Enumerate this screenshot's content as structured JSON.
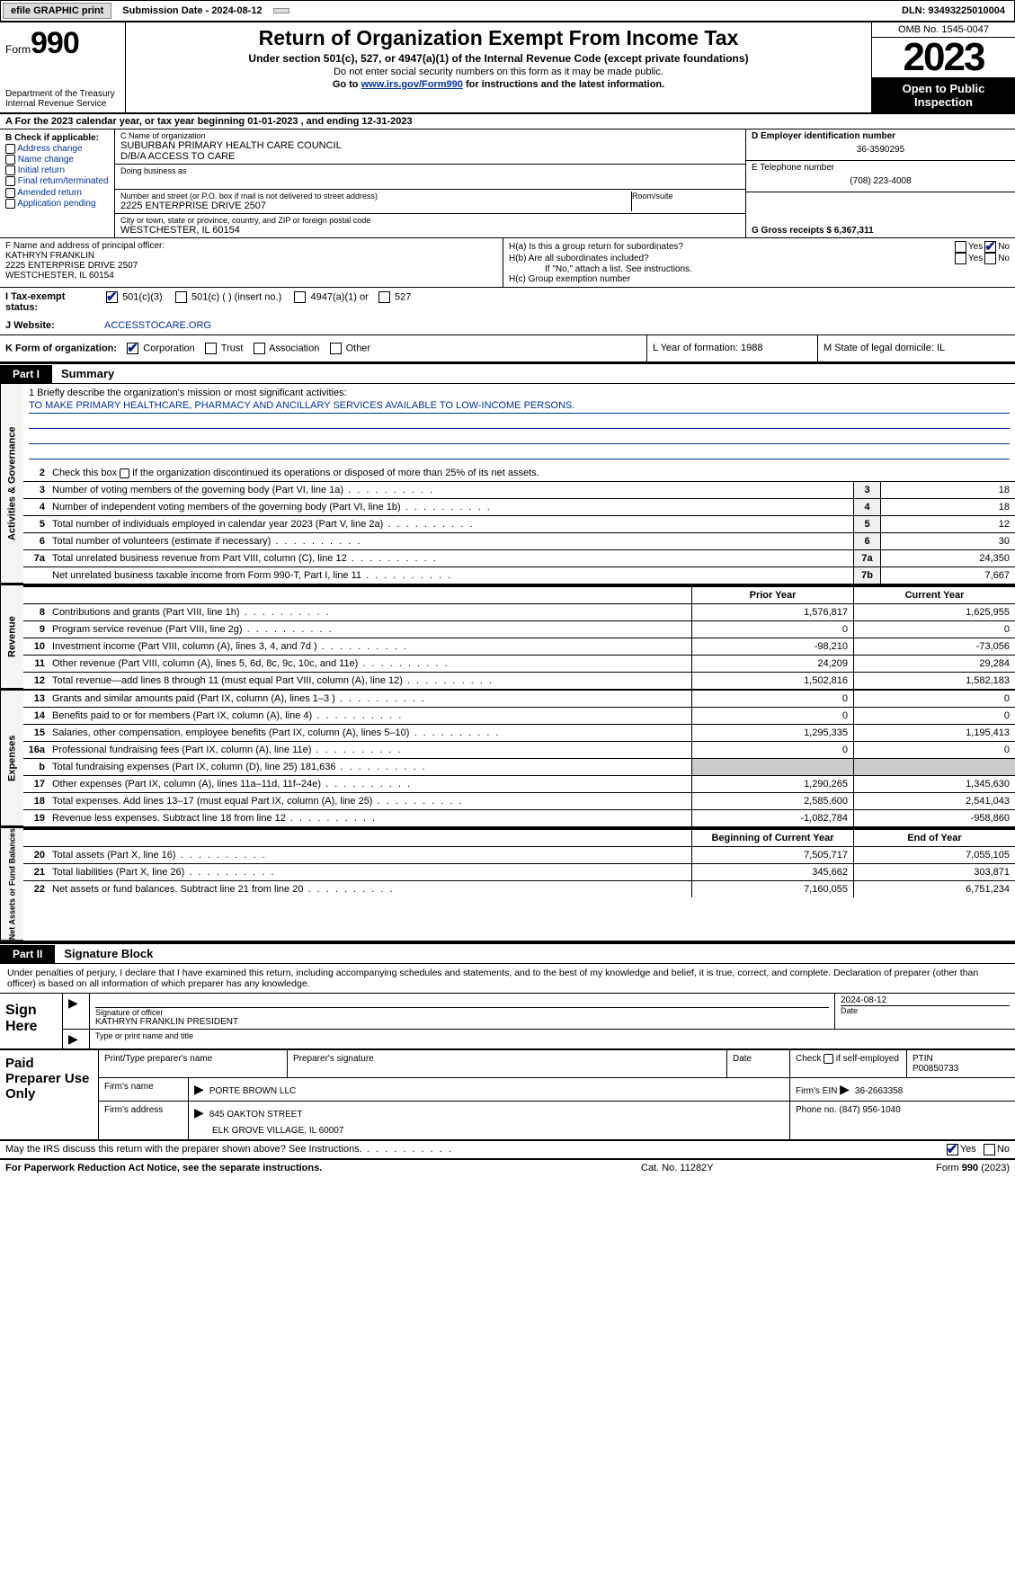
{
  "top": {
    "efile": "efile GRAPHIC print",
    "submission": "Submission Date - 2024-08-12",
    "dln": "DLN: 93493225010004"
  },
  "header": {
    "form_prefix": "Form",
    "form_no": "990",
    "dept1": "Department of the Treasury",
    "dept2": "Internal Revenue Service",
    "title": "Return of Organization Exempt From Income Tax",
    "sub1": "Under section 501(c), 527, or 4947(a)(1) of the Internal Revenue Code (except private foundations)",
    "sub2": "Do not enter social security numbers on this form as it may be made public.",
    "sub3_a": "Go to ",
    "sub3_link": "www.irs.gov/Form990",
    "sub3_b": " for instructions and the latest information.",
    "omb": "OMB No. 1545-0047",
    "year": "2023",
    "open": "Open to Public Inspection"
  },
  "row_a": "A For the 2023 calendar year, or tax year beginning 01-01-2023   , and ending 12-31-2023",
  "box_b": {
    "title": "B Check if applicable:",
    "opts": [
      "Address change",
      "Name change",
      "Initial return",
      "Final return/terminated",
      "Amended return",
      "Application pending"
    ]
  },
  "box_c": {
    "name_lbl": "C Name of organization",
    "name": "SUBURBAN PRIMARY HEALTH CARE COUNCIL",
    "dba": "D/B/A ACCESS TO CARE",
    "dba_lbl": "Doing business as",
    "addr_lbl": "Number and street (or P.O. box if mail is not delivered to street address)",
    "room_lbl": "Room/suite",
    "addr": "2225 ENTERPRISE DRIVE 2507",
    "city_lbl": "City or town, state or province, country, and ZIP or foreign postal code",
    "city": "WESTCHESTER, IL  60154"
  },
  "box_d": {
    "lbl": "D Employer identification number",
    "val": "36-3590295"
  },
  "box_e": {
    "lbl": "E Telephone number",
    "val": "(708) 223-4008"
  },
  "box_g": {
    "lbl": "G Gross receipts $ 6,367,311"
  },
  "box_f": {
    "lbl": "F  Name and address of principal officer:",
    "line1": "KATHRYN FRANKLIN",
    "line2": "2225 ENTERPRISE DRIVE 2507",
    "line3": "WESTCHESTER, IL  60154"
  },
  "box_h": {
    "a": "H(a)  Is this a group return for subordinates?",
    "b": "H(b)  Are all subordinates included?",
    "b2": "If \"No,\" attach a list. See instructions.",
    "c": "H(c)  Group exemption number"
  },
  "row_i": {
    "lbl": "I    Tax-exempt status:",
    "o1": "501(c)(3)",
    "o2": "501(c) (  ) (insert no.)",
    "o3": "4947(a)(1) or",
    "o4": "527"
  },
  "row_j": {
    "lbl": "J   Website:",
    "val": "ACCESSTOCARE.ORG"
  },
  "row_k": {
    "lbl": "K Form of organization:",
    "o1": "Corporation",
    "o2": "Trust",
    "o3": "Association",
    "o4": "Other"
  },
  "row_l": "L Year of formation: 1988",
  "row_m": "M State of legal domicile: IL",
  "p1": {
    "tag": "Part I",
    "title": "Summary"
  },
  "p2": {
    "tag": "Part II",
    "title": "Signature Block"
  },
  "mission": {
    "q": "1  Briefly describe the organization's mission or most significant activities:",
    "text": "TO MAKE PRIMARY HEALTHCARE, PHARMACY AND ANCILLARY SERVICES AVAILABLE TO LOW-INCOME PERSONS."
  },
  "line2": "Check this box      if the organization discontinued its operations or disposed of more than 25% of its net assets.",
  "gov_rows": [
    {
      "n": "3",
      "d": "Number of voting members of the governing body (Part VI, line 1a)",
      "b": "3",
      "v": "18"
    },
    {
      "n": "4",
      "d": "Number of independent voting members of the governing body (Part VI, line 1b)",
      "b": "4",
      "v": "18"
    },
    {
      "n": "5",
      "d": "Total number of individuals employed in calendar year 2023 (Part V, line 2a)",
      "b": "5",
      "v": "12"
    },
    {
      "n": "6",
      "d": "Total number of volunteers (estimate if necessary)",
      "b": "6",
      "v": "30"
    },
    {
      "n": "7a",
      "d": "Total unrelated business revenue from Part VIII, column (C), line 12",
      "b": "7a",
      "v": "24,350"
    },
    {
      "n": "",
      "d": "Net unrelated business taxable income from Form 990-T, Part I, line 11",
      "b": "7b",
      "v": "7,667"
    }
  ],
  "hdr_main": {
    "prior": "Prior Year",
    "curr": "Current Year"
  },
  "rev_rows": [
    {
      "n": "8",
      "d": "Contributions and grants (Part VIII, line 1h)",
      "p": "1,576,817",
      "c": "1,625,955"
    },
    {
      "n": "9",
      "d": "Program service revenue (Part VIII, line 2g)",
      "p": "0",
      "c": "0"
    },
    {
      "n": "10",
      "d": "Investment income (Part VIII, column (A), lines 3, 4, and 7d )",
      "p": "-98,210",
      "c": "-73,056"
    },
    {
      "n": "11",
      "d": "Other revenue (Part VIII, column (A), lines 5, 6d, 8c, 9c, 10c, and 11e)",
      "p": "24,209",
      "c": "29,284"
    },
    {
      "n": "12",
      "d": "Total revenue—add lines 8 through 11 (must equal Part VIII, column (A), line 12)",
      "p": "1,502,816",
      "c": "1,582,183"
    }
  ],
  "exp_rows": [
    {
      "n": "13",
      "d": "Grants and similar amounts paid (Part IX, column (A), lines 1–3 )",
      "p": "0",
      "c": "0"
    },
    {
      "n": "14",
      "d": "Benefits paid to or for members (Part IX, column (A), line 4)",
      "p": "0",
      "c": "0"
    },
    {
      "n": "15",
      "d": "Salaries, other compensation, employee benefits (Part IX, column (A), lines 5–10)",
      "p": "1,295,335",
      "c": "1,195,413"
    },
    {
      "n": "16a",
      "d": "Professional fundraising fees (Part IX, column (A), line 11e)",
      "p": "0",
      "c": "0"
    },
    {
      "n": "b",
      "d": "Total fundraising expenses (Part IX, column (D), line 25) 181,636",
      "p": "",
      "c": "",
      "shade": true
    },
    {
      "n": "17",
      "d": "Other expenses (Part IX, column (A), lines 11a–11d, 11f–24e)",
      "p": "1,290,265",
      "c": "1,345,630"
    },
    {
      "n": "18",
      "d": "Total expenses. Add lines 13–17 (must equal Part IX, column (A), line 25)",
      "p": "2,585,600",
      "c": "2,541,043"
    },
    {
      "n": "19",
      "d": "Revenue less expenses. Subtract line 18 from line 12",
      "p": "-1,082,784",
      "c": "-958,860"
    }
  ],
  "hdr_bal": {
    "prior": "Beginning of Current Year",
    "curr": "End of Year"
  },
  "bal_rows": [
    {
      "n": "20",
      "d": "Total assets (Part X, line 16)",
      "p": "7,505,717",
      "c": "7,055,105"
    },
    {
      "n": "21",
      "d": "Total liabilities (Part X, line 26)",
      "p": "345,662",
      "c": "303,871"
    },
    {
      "n": "22",
      "d": "Net assets or fund balances. Subtract line 21 from line 20",
      "p": "7,160,055",
      "c": "6,751,234"
    }
  ],
  "vtabs": {
    "gov": "Activities & Governance",
    "rev": "Revenue",
    "exp": "Expenses",
    "bal": "Net Assets or Fund Balances"
  },
  "perjury": "Under penalties of perjury, I declare that I have examined this return, including accompanying schedules and statements, and to the best of my knowledge and belief, it is true, correct, and complete. Declaration of preparer (other than officer) is based on all information of which preparer has any knowledge.",
  "sign": {
    "l": "Sign Here",
    "date": "2024-08-12",
    "sig_lbl": "Signature of officer",
    "name": "KATHRYN FRANKLIN  PRESIDENT",
    "name_lbl": "Type or print name and title",
    "date_lbl": "Date"
  },
  "prep": {
    "l": "Paid Preparer Use Only",
    "h1": "Print/Type preparer's name",
    "h2": "Preparer's signature",
    "h3": "Date",
    "h4": "Check      if self-employed",
    "h5": "PTIN",
    "ptin": "P00850733",
    "firm_lbl": "Firm's name",
    "firm": "PORTE BROWN LLC",
    "ein_lbl": "Firm's EIN",
    "ein": "36-2663358",
    "addr_lbl": "Firm's address",
    "addr1": "845 OAKTON STREET",
    "addr2": "ELK GROVE VILLAGE, IL  60007",
    "phone_lbl": "Phone no.",
    "phone": "(847) 956-1040"
  },
  "may": "May the IRS discuss this return with the preparer shown above? See Instructions.",
  "footer": {
    "l": "For Paperwork Reduction Act Notice, see the separate instructions.",
    "m": "Cat. No. 11282Y",
    "r1": "Form ",
    "r2": "990",
    "r3": " (2023)"
  },
  "yn": {
    "yes": "Yes",
    "no": "No"
  }
}
